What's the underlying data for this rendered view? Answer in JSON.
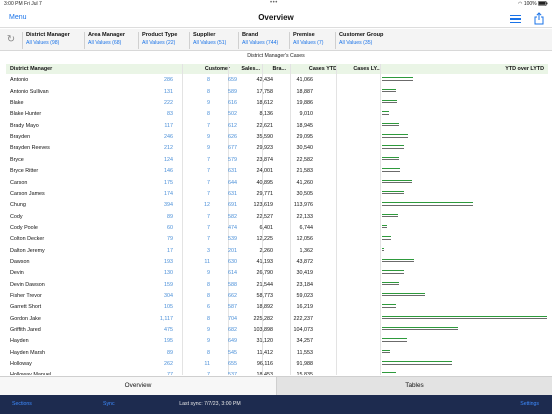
{
  "status": {
    "time": "3:00 PM   Fri Jul 7",
    "dots": "•••",
    "right": "100%"
  },
  "nav": {
    "menu": "Menu",
    "title": "Overview"
  },
  "filters": [
    {
      "label": "District Manager",
      "value": "All Values (98)"
    },
    {
      "label": "Area Manager",
      "value": "All Values (68)"
    },
    {
      "label": "Product Type",
      "value": "All Values (22)"
    },
    {
      "label": "Supplier",
      "value": "All Values (51)"
    },
    {
      "label": "Brand",
      "value": "All Values (744)"
    },
    {
      "label": "Premise",
      "value": "All Values (7)"
    },
    {
      "label": "Customer Group",
      "value": "All Values (35)"
    }
  ],
  "section_title": "District Manager's Cases",
  "columns": {
    "name": "District Manager",
    "customer": "Customer",
    "sales": "Sales...",
    "brands": "Bra...",
    "cy": "Cases YTD",
    "ly": "Cases LY...",
    "chart": "YTD over LYTD"
  },
  "rows": [
    {
      "name": "Antonio",
      "customer": "286",
      "sales": "8",
      "brands": "659",
      "cy": "42,434",
      "ly": "41,066",
      "cyv": 42434,
      "lyv": 41066
    },
    {
      "name": "Antonio Sullivan",
      "customer": "131",
      "sales": "8",
      "brands": "589",
      "cy": "17,758",
      "ly": "18,887",
      "cyv": 17758,
      "lyv": 18887
    },
    {
      "name": "Blake",
      "customer": "222",
      "sales": "9",
      "brands": "616",
      "cy": "18,612",
      "ly": "19,886",
      "cyv": 18612,
      "lyv": 19886
    },
    {
      "name": "Blake Hunter",
      "customer": "83",
      "sales": "8",
      "brands": "502",
      "cy": "8,136",
      "ly": "9,010",
      "cyv": 8136,
      "lyv": 9010
    },
    {
      "name": "Brady Mayo",
      "customer": "117",
      "sales": "7",
      "brands": "612",
      "cy": "22,621",
      "ly": "18,945",
      "cyv": 22621,
      "lyv": 18945
    },
    {
      "name": "Brayden",
      "customer": "246",
      "sales": "9",
      "brands": "626",
      "cy": "35,590",
      "ly": "29,095",
      "cyv": 35590,
      "lyv": 29095
    },
    {
      "name": "Brayden Reeves",
      "customer": "212",
      "sales": "9",
      "brands": "677",
      "cy": "29,923",
      "ly": "30,540",
      "cyv": 29923,
      "lyv": 30540
    },
    {
      "name": "Bryce",
      "customer": "124",
      "sales": "7",
      "brands": "579",
      "cy": "23,874",
      "ly": "22,582",
      "cyv": 23874,
      "lyv": 22582
    },
    {
      "name": "Bryce Ritter",
      "customer": "146",
      "sales": "7",
      "brands": "631",
      "cy": "24,001",
      "ly": "21,583",
      "cyv": 24001,
      "lyv": 21583
    },
    {
      "name": "Carson",
      "customer": "175",
      "sales": "7",
      "brands": "644",
      "cy": "40,895",
      "ly": "41,260",
      "cyv": 40895,
      "lyv": 41260
    },
    {
      "name": "Carson James",
      "customer": "174",
      "sales": "7",
      "brands": "631",
      "cy": "29,771",
      "ly": "30,505",
      "cyv": 29771,
      "lyv": 30505
    },
    {
      "name": "Chung",
      "customer": "394",
      "sales": "12",
      "brands": "691",
      "cy": "123,619",
      "ly": "113,976",
      "cyv": 123619,
      "lyv": 113976
    },
    {
      "name": "Cody",
      "customer": "89",
      "sales": "7",
      "brands": "582",
      "cy": "22,527",
      "ly": "22,133",
      "cyv": 22527,
      "lyv": 22133
    },
    {
      "name": "Cody Poole",
      "customer": "60",
      "sales": "7",
      "brands": "474",
      "cy": "6,401",
      "ly": "6,744",
      "cyv": 6401,
      "lyv": 6744
    },
    {
      "name": "Colton Decker",
      "customer": "79",
      "sales": "7",
      "brands": "539",
      "cy": "12,225",
      "ly": "12,056",
      "cyv": 12225,
      "lyv": 12056
    },
    {
      "name": "Dalton Jeremy",
      "customer": "17",
      "sales": "3",
      "brands": "201",
      "cy": "2,260",
      "ly": "1,362",
      "cyv": 2260,
      "lyv": 1362
    },
    {
      "name": "Dawson",
      "customer": "193",
      "sales": "11",
      "brands": "630",
      "cy": "41,193",
      "ly": "43,872",
      "cyv": 41193,
      "lyv": 43872
    },
    {
      "name": "Devin",
      "customer": "130",
      "sales": "9",
      "brands": "614",
      "cy": "26,790",
      "ly": "30,419",
      "cyv": 26790,
      "lyv": 30419
    },
    {
      "name": "Devin Dawson",
      "customer": "159",
      "sales": "8",
      "brands": "588",
      "cy": "21,544",
      "ly": "23,184",
      "cyv": 21544,
      "lyv": 23184
    },
    {
      "name": "Fisher Trevor",
      "customer": "304",
      "sales": "8",
      "brands": "662",
      "cy": "58,773",
      "ly": "59,023",
      "cyv": 58773,
      "lyv": 59023
    },
    {
      "name": "Garrett Short",
      "customer": "105",
      "sales": "6",
      "brands": "587",
      "cy": "18,892",
      "ly": "16,219",
      "cyv": 18892,
      "lyv": 16219
    },
    {
      "name": "Gordon Jake",
      "customer": "1,117",
      "sales": "8",
      "brands": "704",
      "cy": "225,282",
      "ly": "222,237",
      "cyv": 225282,
      "lyv": 222237
    },
    {
      "name": "Griffith Jared",
      "customer": "475",
      "sales": "9",
      "brands": "682",
      "cy": "103,898",
      "ly": "104,073",
      "cyv": 103898,
      "lyv": 104073
    },
    {
      "name": "Hayden",
      "customer": "195",
      "sales": "9",
      "brands": "649",
      "cy": "31,120",
      "ly": "34,257",
      "cyv": 31120,
      "lyv": 34257
    },
    {
      "name": "Hayden Marsh",
      "customer": "89",
      "sales": "8",
      "brands": "545",
      "cy": "11,412",
      "ly": "11,553",
      "cyv": 11412,
      "lyv": 11553
    },
    {
      "name": "Holloway",
      "customer": "262",
      "sales": "11",
      "brands": "655",
      "cy": "96,116",
      "ly": "91,988",
      "cyv": 96116,
      "lyv": 91988
    },
    {
      "name": "Holloway Manuel",
      "customer": "77",
      "sales": "7",
      "brands": "537",
      "cy": "18,453",
      "ly": "15,835",
      "cyv": 18453,
      "lyv": 15835
    }
  ],
  "tabs": {
    "overview": "Overview",
    "tables": "Tables"
  },
  "bottom": {
    "sections": "Sections",
    "sync": "Sync",
    "last_sync": "Last sync: 7/7/23, 3:00 PM",
    "settings": "Settings"
  },
  "colors": {
    "cy_bar": "#2e9a3c",
    "ly_bar": "#6b6b6b",
    "link": "#1a73e8"
  }
}
